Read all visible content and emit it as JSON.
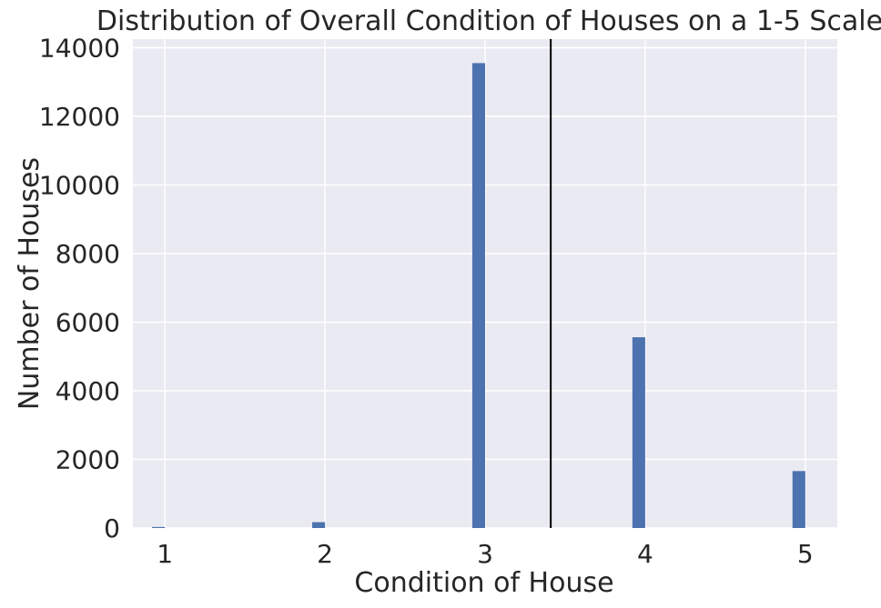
{
  "chart_data": {
    "type": "bar",
    "title": "Distribution of Overall Condition of Houses on a 1-5 Scale",
    "xlabel": "Condition of House",
    "ylabel": "Number of Houses",
    "x_ticks": [
      "1",
      "2",
      "3",
      "4",
      "5"
    ],
    "y_ticks": [
      "0",
      "2000",
      "4000",
      "6000",
      "8000",
      "10000",
      "12000",
      "14000"
    ],
    "xlim": [
      0.8,
      5.2
    ],
    "ylim": [
      0,
      14250
    ],
    "bar_width": 0.08,
    "grid": true,
    "categories": [
      1,
      2,
      3,
      4,
      5
    ],
    "values": [
      30,
      170,
      13550,
      5560,
      1660
    ],
    "reference_line": {
      "x": 3.41
    },
    "colors": {
      "bar": "#4c72b0",
      "background": "#eaeaf2",
      "grid": "#ffffff",
      "reference_line": "#000000"
    }
  }
}
